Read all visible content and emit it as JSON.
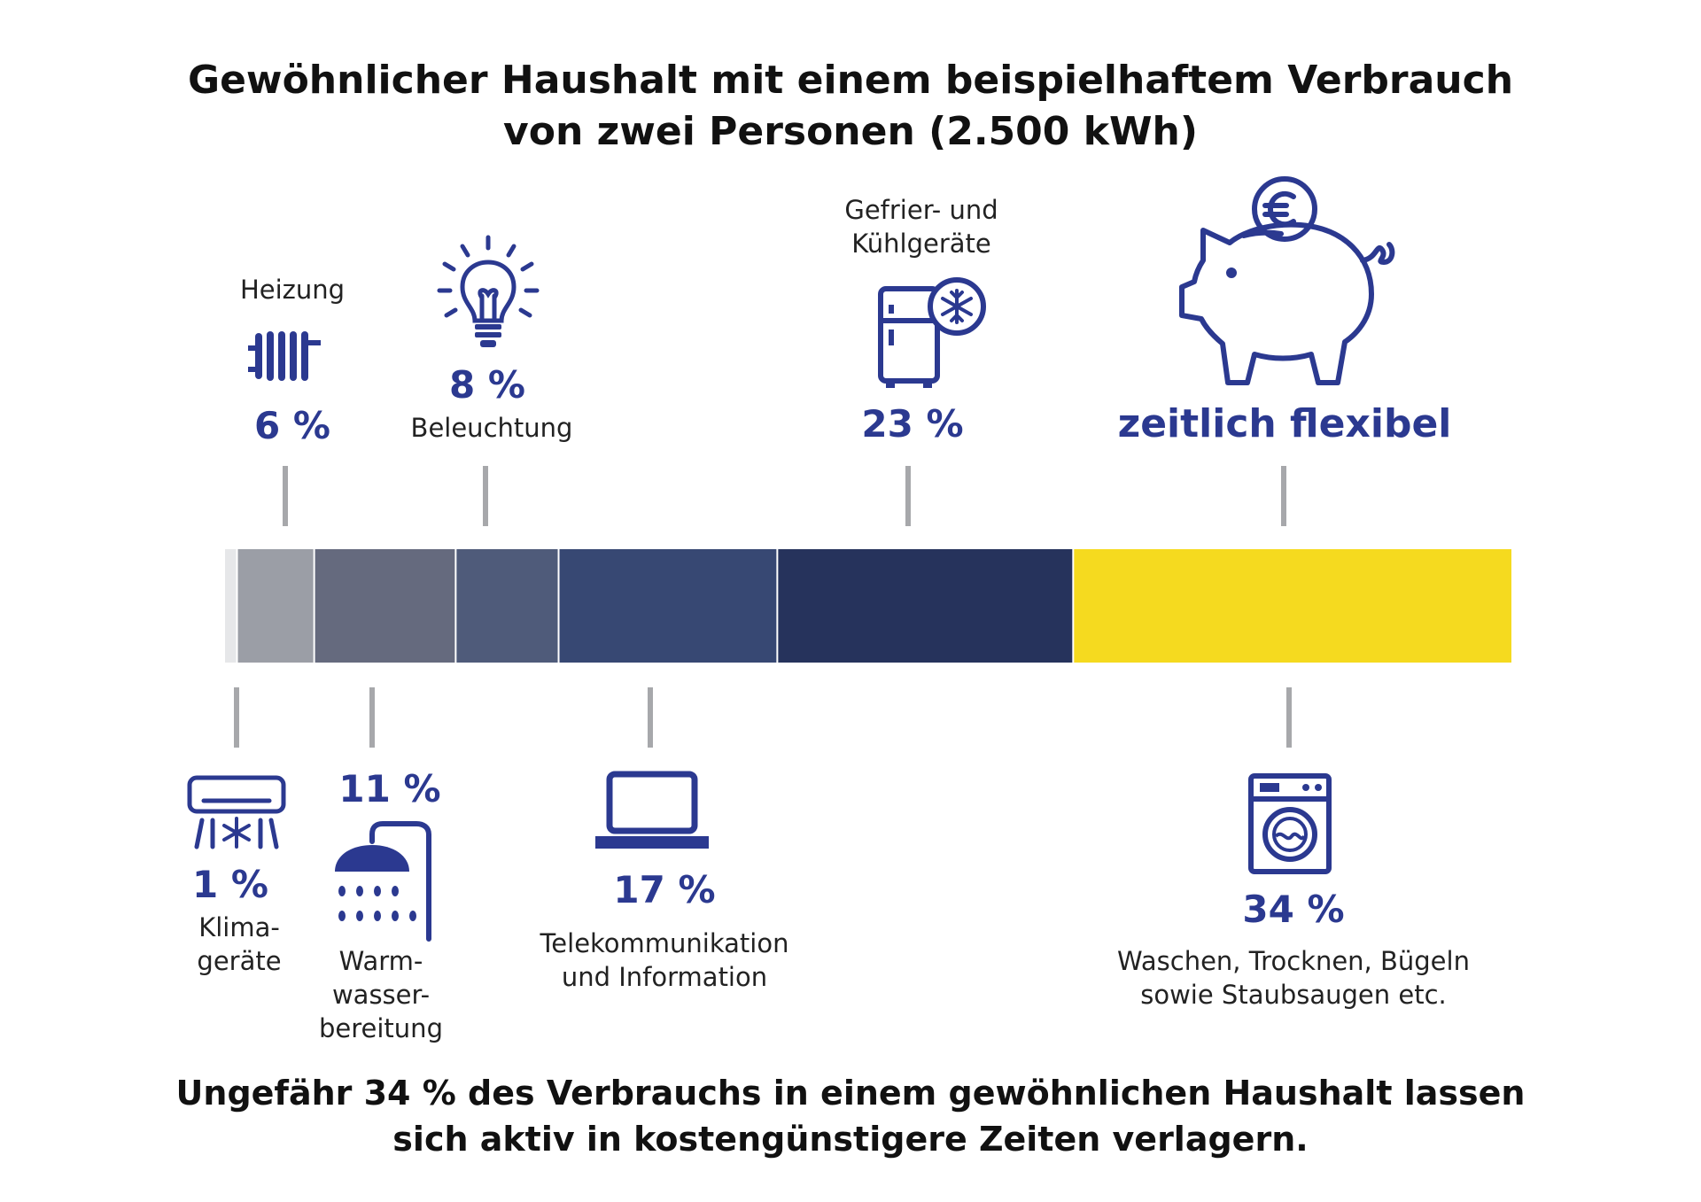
{
  "title": {
    "line1": "Gewöhnlicher Haushalt mit einem beispielhaftem Verbrauch",
    "line2": "von zwei Personen (2.500 kWh)"
  },
  "footer": {
    "line1": "Ungefähr 34 % des Verbrauchs in einem gewöhnlichen Haushalt lassen",
    "line2": "sich aktiv in kostengünstigere Zeiten verlagern."
  },
  "flexible_label": "zeitlich flexibel",
  "icons": {
    "heizung": "radiator-icon",
    "beleuchtung": "lightbulb-icon",
    "kuehl": "fridge-snowflake-icon",
    "flexibel": "piggy-bank-euro-icon",
    "klima": "air-conditioner-icon",
    "warmwasser": "shower-icon",
    "telekom": "laptop-icon",
    "waschen": "washing-machine-icon"
  },
  "chart_data": {
    "type": "bar",
    "orientation": "horizontal-stacked",
    "title": "Gewöhnlicher Haushalt mit einem beispielhaftem Verbrauch von zwei Personen (2.500 kWh)",
    "unit": "%",
    "segments": [
      {
        "id": "klima",
        "label_lines": [
          "Klima-",
          "geräte"
        ],
        "value": 1,
        "value_label": "1 %",
        "color": "#e6e7e9"
      },
      {
        "id": "heizung",
        "label_lines": [
          "Heizung"
        ],
        "value": 6,
        "value_label": "6 %",
        "color": "#9b9ea6"
      },
      {
        "id": "warmwasser",
        "label_lines": [
          "Warm-",
          "wasser-",
          "bereitung"
        ],
        "value": 11,
        "value_label": "11 %",
        "color": "#656a7e"
      },
      {
        "id": "beleuchtung",
        "label_lines": [
          "Beleuchtung"
        ],
        "value": 8,
        "value_label": "8 %",
        "color": "#4f5b7a"
      },
      {
        "id": "telekom",
        "label_lines": [
          "Telekommunikation",
          "und Information"
        ],
        "value": 17,
        "value_label": "17 %",
        "color": "#374873"
      },
      {
        "id": "kuehl",
        "label_lines": [
          "Gefrier- und",
          "Kühlgeräte"
        ],
        "value": 23,
        "value_label": "23 %",
        "color": "#26335c"
      },
      {
        "id": "waschen",
        "label_lines": [
          "Waschen, Trocknen, Bügeln",
          "sowie Staubsaugen etc."
        ],
        "value": 34,
        "value_label": "34 %",
        "color": "#f5da1f"
      }
    ]
  }
}
